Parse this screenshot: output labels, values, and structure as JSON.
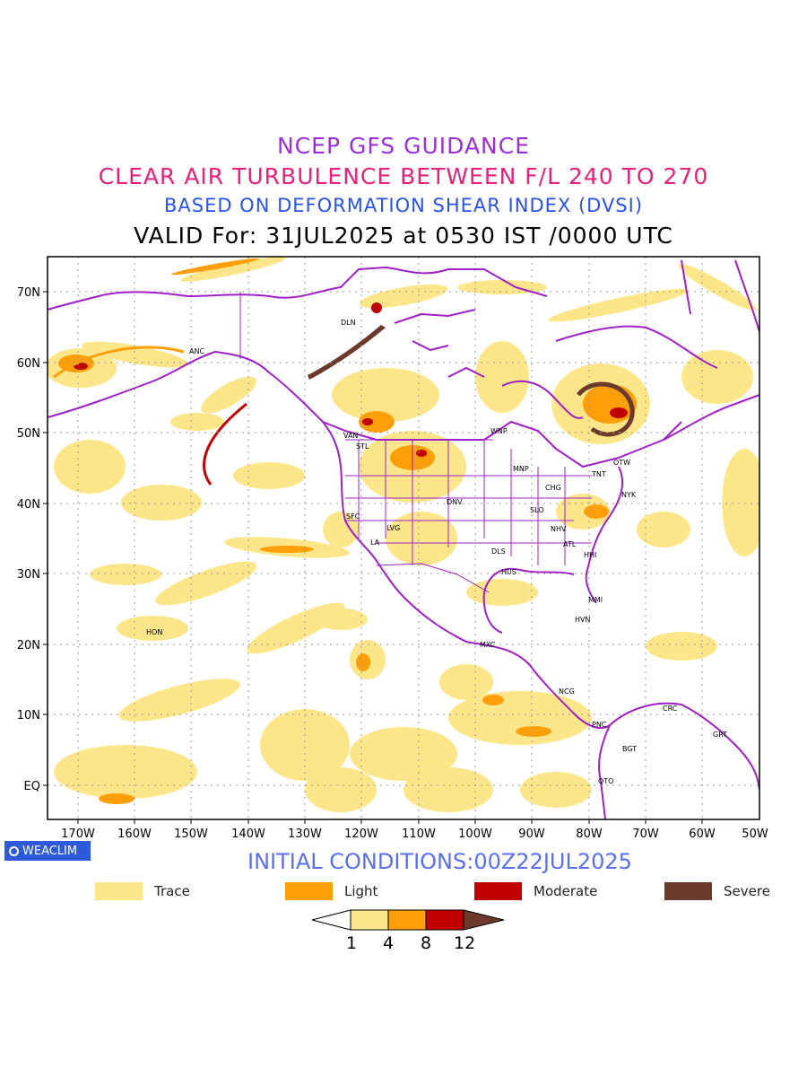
{
  "titles": {
    "line1": "NCEP GFS GUIDANCE",
    "line2": "CLEAR AIR TURBULENCE BETWEEN F/L 240 TO 270",
    "line3": "BASED ON DEFORMATION SHEAR INDEX (DVSI)",
    "line4": "VALID For: 31JUL2025 at 0530 IST /0000 UTC"
  },
  "axes": {
    "lat_labels": [
      "70N",
      "60N",
      "50N",
      "40N",
      "30N",
      "20N",
      "10N",
      "EQ"
    ],
    "lon_labels": [
      "170W",
      "160W",
      "150W",
      "140W",
      "130W",
      "120W",
      "110W",
      "100W",
      "90W",
      "80W",
      "70W",
      "60W",
      "50W"
    ]
  },
  "stations": [
    {
      "code": "DLN"
    },
    {
      "code": "ANC"
    },
    {
      "code": "VAN"
    },
    {
      "code": "STL"
    },
    {
      "code": "WNP"
    },
    {
      "code": "MNP"
    },
    {
      "code": "OTW"
    },
    {
      "code": "TNT"
    },
    {
      "code": "CHG"
    },
    {
      "code": "NYK"
    },
    {
      "code": "DNV"
    },
    {
      "code": "SFC"
    },
    {
      "code": "SLO"
    },
    {
      "code": "LVG"
    },
    {
      "code": "NHV"
    },
    {
      "code": "LA"
    },
    {
      "code": "ATL"
    },
    {
      "code": "DLS"
    },
    {
      "code": "HHI"
    },
    {
      "code": "HUS"
    },
    {
      "code": "MMI"
    },
    {
      "code": "HON"
    },
    {
      "code": "HVN"
    },
    {
      "code": "MXC"
    },
    {
      "code": "NCG"
    },
    {
      "code": "CRC"
    },
    {
      "code": "PNC"
    },
    {
      "code": "GRT"
    },
    {
      "code": "BGT"
    },
    {
      "code": "QTO"
    }
  ],
  "branding": {
    "logo_text": "WEACLIM"
  },
  "initial_conditions": "INITIAL CONDITIONS:00Z22JUL2025",
  "legend": [
    {
      "label": "Trace",
      "color": "#fde68a"
    },
    {
      "label": "Light",
      "color": "#fe9f0a"
    },
    {
      "label": "Moderate",
      "color": "#c00000"
    },
    {
      "label": "Severe",
      "color": "#6b3a2a"
    }
  ],
  "colorbar": {
    "ticks": [
      "1",
      "4",
      "8",
      "12"
    ]
  },
  "colors": {
    "coastline": "#a020c8",
    "trace": "#fde68a",
    "light": "#fe9f0a",
    "moderate": "#c00000",
    "severe": "#6b3a2a"
  }
}
